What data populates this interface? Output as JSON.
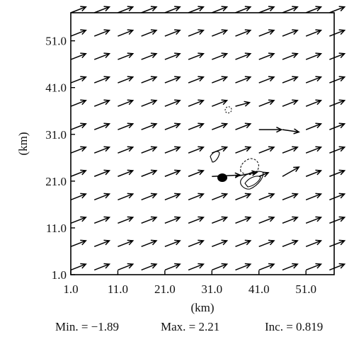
{
  "chart_data": {
    "type": "vector_field",
    "xlabel": "(km)",
    "ylabel": "(km)",
    "xlim": [
      1.0,
      57.0
    ],
    "ylim": [
      1.0,
      57.0
    ],
    "x_ticks": [
      "1.0",
      "11.0",
      "21.0",
      "31.0",
      "41.0",
      "51.0"
    ],
    "y_ticks": [
      "1.0",
      "11.0",
      "21.0",
      "31.0",
      "41.0",
      "51.0"
    ],
    "grid_x_start_km": 1.0,
    "grid_y_start_km": 2.0,
    "grid_spacing_km": 5.0,
    "grid_cols": 12,
    "grid_rows": 12,
    "default_vector": {
      "u": 3.2,
      "v": 1.25
    },
    "special_vectors": [
      {
        "x": 31.0,
        "y": 22.0,
        "u": 6.0,
        "v": 0.3
      },
      {
        "x": 36.0,
        "y": 22.0,
        "u": 4.6,
        "v": 0.9
      },
      {
        "x": 41.0,
        "y": 32.0,
        "u": 4.8,
        "v": 0.0
      },
      {
        "x": 46.0,
        "y": 32.0,
        "u": 3.5,
        "v": -0.5
      },
      {
        "x": 36.0,
        "y": 37.0,
        "u": 3.0,
        "v": 0.8
      },
      {
        "x": 41.0,
        "y": 22.0,
        "u": 2.0,
        "v": 0.8
      },
      {
        "x": 46.0,
        "y": 22.0,
        "u": 3.5,
        "v": 2.0
      }
    ],
    "stats": {
      "min_label": "Min. = −1.89",
      "max_label": "Max. = 2.21",
      "inc_label": "Inc. = 0.819"
    }
  }
}
